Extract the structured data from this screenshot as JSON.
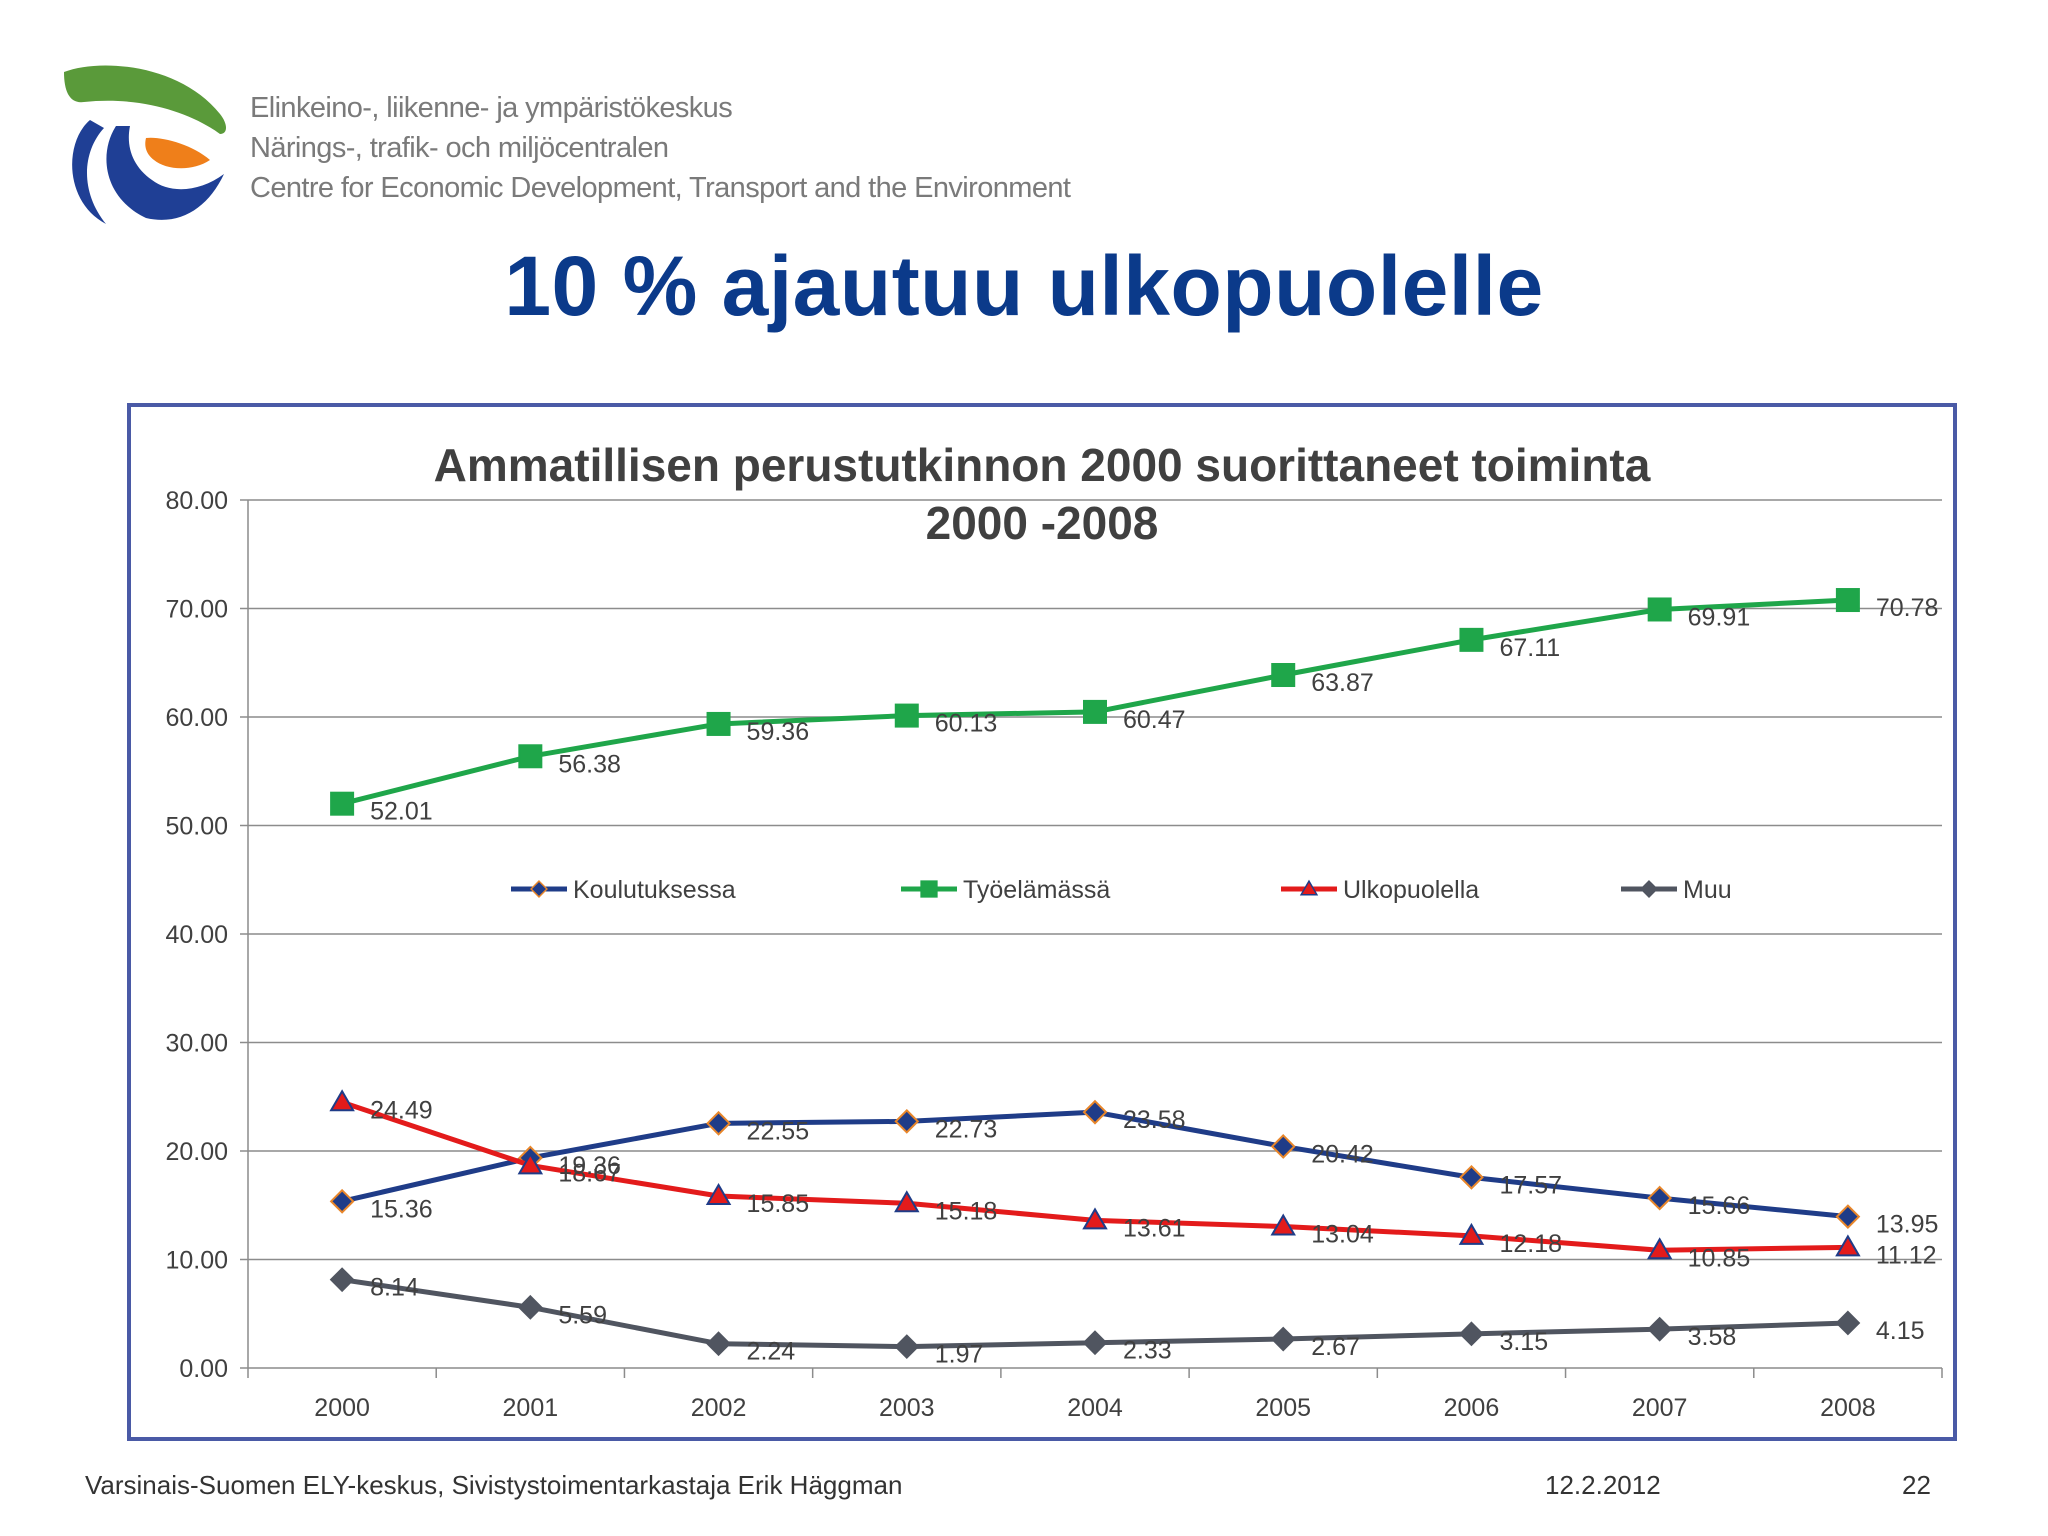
{
  "organization": {
    "lines": [
      "Elinkeino-, liikenne- ja ympäristökeskus",
      "Närings-, trafik- och miljöcentralen",
      "Centre for Economic Development, Transport and the Environment"
    ]
  },
  "slide_title": "10 % ajautuu ulkopuolelle",
  "footer": {
    "left": "Varsinais-Suomen ELY-keskus, Sivistystoimentarkastaja Erik Häggman",
    "date": "12.2.2012",
    "page": "22"
  },
  "colors": {
    "title_blue": "#0b3a8a",
    "frame_border": "#4a5aa6",
    "logo_green": "#5a9a3a",
    "logo_orange": "#ef7f1a",
    "logo_blue": "#1f3f95"
  },
  "chart_data": {
    "type": "line",
    "title": "Ammatillisen perustutkinnon 2000 suorittaneet toiminta 2000 -2008",
    "title_lines": [
      "Ammatillisen perustutkinnon 2000 suorittaneet toiminta",
      "2000 -2008"
    ],
    "categories": [
      "2000",
      "2001",
      "2002",
      "2003",
      "2004",
      "2005",
      "2006",
      "2007",
      "2008"
    ],
    "ylim": [
      0,
      80
    ],
    "yticks": [
      "0.00",
      "10.00",
      "20.00",
      "30.00",
      "40.00",
      "50.00",
      "60.00",
      "70.00",
      "80.00"
    ],
    "grid": true,
    "legend": "middle",
    "series": [
      {
        "name": "Koulutuksessa",
        "color": "#1f3c88",
        "marker": "diamond",
        "marker_fill": "#1f3c88",
        "marker_stroke": "#e8862a",
        "values": [
          15.36,
          19.36,
          22.55,
          22.73,
          23.58,
          20.42,
          17.57,
          15.66,
          13.95
        ],
        "labels": [
          "15.36",
          "19.36",
          "22.55",
          "22.73",
          "23.58",
          "20.42",
          "17.57",
          "15.66",
          "13.95"
        ]
      },
      {
        "name": "Työelämässä",
        "color": "#1fa64a",
        "marker": "square",
        "marker_fill": "#1fa64a",
        "marker_stroke": "#1fa64a",
        "values": [
          52.01,
          56.38,
          59.36,
          60.13,
          60.47,
          63.87,
          67.11,
          69.91,
          70.78
        ],
        "labels": [
          "52.01",
          "56.38",
          "59.36",
          "60.13",
          "60.47",
          "63.87",
          "67.11",
          "69.91",
          "70.78"
        ]
      },
      {
        "name": "Ulkopuolella",
        "color": "#e31b1b",
        "marker": "triangle",
        "marker_fill": "#e31b1b",
        "marker_stroke": "#1f3c88",
        "values": [
          24.49,
          18.67,
          15.85,
          15.18,
          13.61,
          13.04,
          12.18,
          10.85,
          11.12
        ],
        "labels": [
          "24.49",
          "18.67",
          "15.85",
          "15.18",
          "13.61",
          "13.04",
          "12.18",
          "10.85",
          "11.12"
        ]
      },
      {
        "name": "Muu",
        "color": "#505560",
        "marker": "diamond",
        "marker_fill": "#505560",
        "marker_stroke": "#505560",
        "values": [
          8.14,
          5.59,
          2.24,
          1.97,
          2.33,
          2.67,
          3.15,
          3.58,
          4.15
        ],
        "labels": [
          "8.14",
          "5.59",
          "2.24",
          "1.97",
          "2.33",
          "2.67",
          "3.15",
          "3.58",
          "4.15"
        ]
      }
    ]
  }
}
